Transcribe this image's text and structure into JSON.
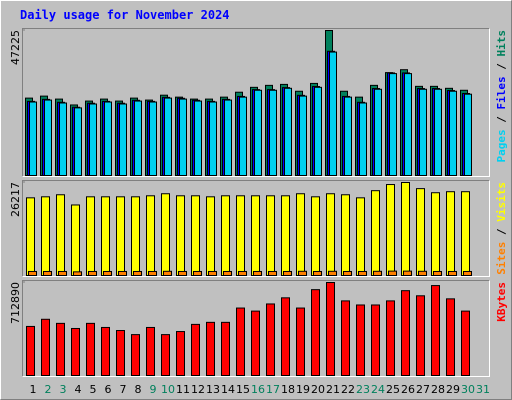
{
  "title": "Daily usage for November 2024",
  "legend_separator": "/",
  "chart_data": [
    {
      "type": "bar",
      "ylim": [
        0,
        47225
      ],
      "yticks": [
        47225
      ],
      "series": [
        {
          "name": "Hits",
          "color": "#00805c",
          "values": [
            25355,
            26000,
            25040,
            23140,
            24400,
            25040,
            24400,
            25355,
            24720,
            26300,
            25670,
            25040,
            25040,
            25670,
            27260,
            28840,
            29480,
            29790,
            27575,
            30110,
            47225,
            27575,
            25670,
            29480,
            33600,
            34550,
            29160,
            29160,
            28525,
            27890,
            null
          ]
        },
        {
          "name": "Files",
          "color": "#0000ff",
          "values": [
            24300,
            24950,
            24000,
            22400,
            23700,
            24300,
            23700,
            24650,
            24300,
            25600,
            25300,
            24650,
            24300,
            24950,
            25900,
            28100,
            28100,
            28750,
            26250,
            29100,
            40500,
            25900,
            24000,
            28450,
            33500,
            33500,
            28450,
            28450,
            27800,
            26850,
            null
          ]
        },
        {
          "name": "Pages",
          "color": "#00d0f0",
          "values": [
            24090,
            24720,
            23770,
            22190,
            23450,
            24090,
            23450,
            24400,
            24090,
            25355,
            25040,
            24400,
            24090,
            24720,
            25670,
            27890,
            27890,
            28525,
            26000,
            28840,
            40250,
            25670,
            23770,
            28210,
            33280,
            33280,
            28210,
            28210,
            27575,
            26620,
            null
          ]
        }
      ]
    },
    {
      "type": "bar",
      "ylim": [
        0,
        26217
      ],
      "yticks": [
        26217
      ],
      "series": [
        {
          "name": "Visits",
          "color": "#ffff00",
          "values": [
            21940,
            22225,
            22795,
            19950,
            22225,
            22225,
            22225,
            22225,
            22510,
            23080,
            22510,
            22510,
            22225,
            22510,
            22510,
            22510,
            22510,
            22510,
            23080,
            22225,
            23080,
            22795,
            21940,
            23935,
            25650,
            26217,
            24505,
            23365,
            23650,
            23650,
            null
          ]
        },
        {
          "name": "Sites",
          "color": "#ff8000",
          "values": [
            1400,
            1400,
            1400,
            1300,
            1400,
            1400,
            1400,
            1400,
            1400,
            1450,
            1400,
            1400,
            1400,
            1400,
            1400,
            1400,
            1400,
            1400,
            1450,
            1400,
            1450,
            1400,
            1400,
            1450,
            1500,
            1500,
            1450,
            1400,
            1400,
            1400,
            null
          ]
        }
      ]
    },
    {
      "type": "bar",
      "ylim": [
        0,
        712890
      ],
      "yticks": [
        712890
      ],
      "categories": [
        "1",
        "2",
        "3",
        "4",
        "5",
        "6",
        "7",
        "8",
        "9",
        "10",
        "11",
        "12",
        "13",
        "14",
        "15",
        "16",
        "17",
        "18",
        "19",
        "20",
        "21",
        "22",
        "23",
        "24",
        "25",
        "26",
        "27",
        "28",
        "29",
        "30",
        "31"
      ],
      "label_colors": [
        "#000000",
        "#00805c",
        "#00805c",
        "#000000",
        "#000000",
        "#000000",
        "#000000",
        "#000000",
        "#00805c",
        "#00805c",
        "#000000",
        "#000000",
        "#000000",
        "#000000",
        "#000000",
        "#00805c",
        "#00805c",
        "#000000",
        "#000000",
        "#000000",
        "#000000",
        "#000000",
        "#00805c",
        "#00805c",
        "#000000",
        "#000000",
        "#000000",
        "#000000",
        "#000000",
        "#00805c",
        "#00805c"
      ],
      "series": [
        {
          "name": "KBytes",
          "color": "#ff0000",
          "values": [
            379700,
            433940,
            402950,
            364200,
            402950,
            371950,
            348700,
            317700,
            371950,
            317700,
            340960,
            395200,
            410700,
            410700,
            519180,
            495940,
            550180,
            596670,
            519180,
            658670,
            712890,
            573430,
            542430,
            542430,
            573430,
            650920,
            612170,
            689640,
            588920,
            495940,
            null
          ]
        }
      ]
    }
  ]
}
